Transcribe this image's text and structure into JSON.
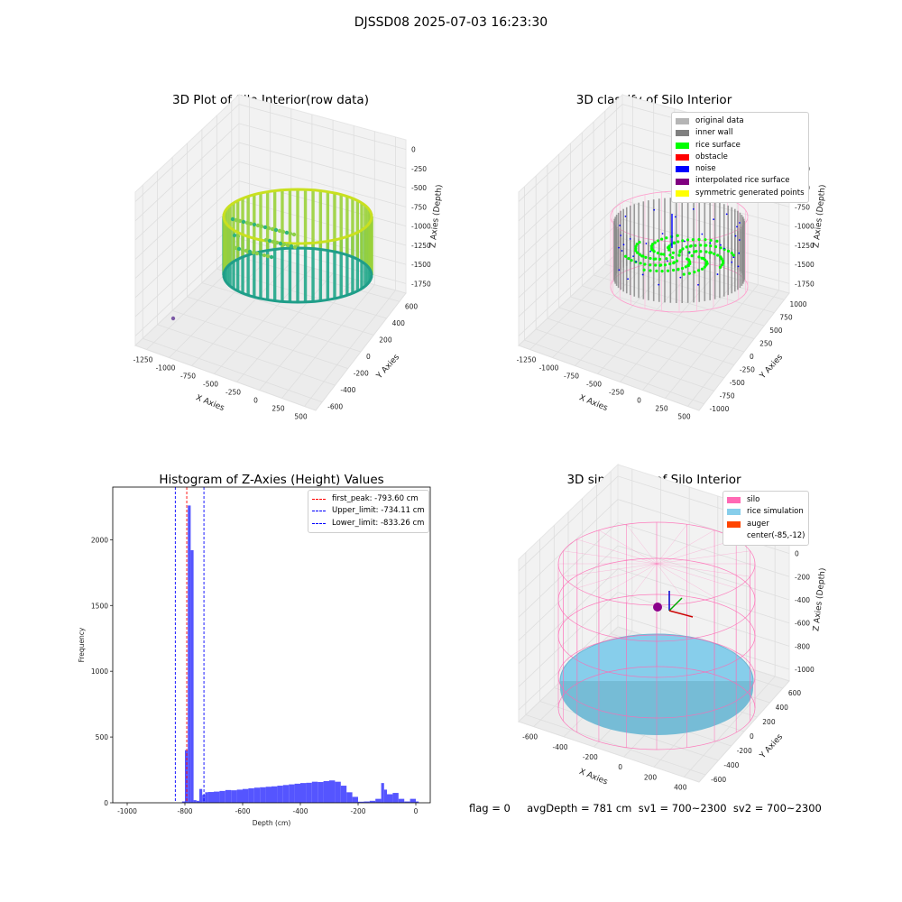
{
  "suptitle": "DJSSD08 2025-07-03 16:23:30",
  "status_line": "flag = 0     avgDepth = 781 cm  sv1 = 700~2300  sv2 = 700~2300",
  "panels": [
    {
      "id": "raw",
      "title": "3D Plot of Silo Interior(row data)",
      "xlabel": "X Axies",
      "ylabel": "Y Axies",
      "zlabel": "Z Axies (Depth)",
      "xticks": [
        "-1250",
        "-1000",
        "-750",
        "-500",
        "-250",
        "0",
        "250",
        "500"
      ],
      "yticks": [
        "-600",
        "-400",
        "-200",
        "0",
        "200",
        "400",
        "600"
      ],
      "zticks": [
        "0",
        "-250",
        "-500",
        "-750",
        "-1000",
        "-1250",
        "-1500",
        "-1750"
      ]
    },
    {
      "id": "classify",
      "title": "3D classify of Silo Interior",
      "xlabel": "X Axies",
      "ylabel": "Y Axies",
      "zlabel": "Z Axies (Depth)",
      "xticks": [
        "-1250",
        "-1000",
        "-750",
        "-500",
        "-250",
        "0",
        "250",
        "500"
      ],
      "yticks": [
        "-1000",
        "-750",
        "-500",
        "-250",
        "0",
        "250",
        "500",
        "750",
        "1000"
      ],
      "zticks": [
        "0",
        "-250",
        "-500",
        "-750",
        "-1000",
        "-1250",
        "-1500",
        "-1750"
      ],
      "legend": [
        {
          "label": "original data",
          "color": "#b5b5b5"
        },
        {
          "label": "inner wall",
          "color": "#808080"
        },
        {
          "label": "rice surface",
          "color": "#00ff00"
        },
        {
          "label": "obstacle",
          "color": "#ff0000"
        },
        {
          "label": "noise",
          "color": "#0000ff"
        },
        {
          "label": "interpolated rice surface",
          "color": "#800080"
        },
        {
          "label": "symmetric generated points",
          "color": "#ffff00"
        }
      ]
    },
    {
      "id": "simulation",
      "title": "3D simulation of Silo Interior",
      "xlabel": "X Axies",
      "ylabel": "Y Axies",
      "zlabel": "Z Axies (Depth)",
      "xticks": [
        "-600",
        "-400",
        "-200",
        "0",
        "200",
        "400"
      ],
      "yticks": [
        "-600",
        "-400",
        "-200",
        "0",
        "200",
        "400",
        "600"
      ],
      "zticks": [
        "200",
        "0",
        "-200",
        "-400",
        "-600",
        "-800",
        "-1000"
      ],
      "legend": [
        {
          "label": "silo",
          "color": "#ff69b4"
        },
        {
          "label": "rice simulation",
          "color": "#87ceeb"
        },
        {
          "label": "auger",
          "color": "#ff4500"
        },
        {
          "label": "center(-85,-12)",
          "color": "#ffffff"
        }
      ]
    }
  ],
  "chart_data": {
    "type": "bar",
    "title": "Histogram of Z-Axies (Height) Values",
    "xlabel": "Depth (cm)",
    "ylabel": "Frequency",
    "xlim": [
      -1050,
      50
    ],
    "ylim": [
      0,
      2400
    ],
    "xticks": [
      -1000,
      -800,
      -600,
      -400,
      -200,
      0
    ],
    "yticks": [
      0,
      500,
      1000,
      1500,
      2000
    ],
    "bar_color": "#4c4cff",
    "bins": [
      [
        -810,
        -800,
        10
      ],
      [
        -800,
        -790,
        400
      ],
      [
        -790,
        -780,
        2260
      ],
      [
        -780,
        -770,
        1920
      ],
      [
        -770,
        -760,
        20
      ],
      [
        -760,
        -750,
        15
      ],
      [
        -750,
        -740,
        105
      ],
      [
        -740,
        -730,
        60
      ],
      [
        -730,
        -720,
        80
      ],
      [
        -720,
        -700,
        82
      ],
      [
        -700,
        -680,
        85
      ],
      [
        -680,
        -660,
        90
      ],
      [
        -660,
        -640,
        97
      ],
      [
        -640,
        -620,
        95
      ],
      [
        -620,
        -600,
        100
      ],
      [
        -600,
        -580,
        105
      ],
      [
        -580,
        -560,
        110
      ],
      [
        -560,
        -540,
        115
      ],
      [
        -540,
        -520,
        118
      ],
      [
        -520,
        -500,
        122
      ],
      [
        -500,
        -480,
        125
      ],
      [
        -480,
        -460,
        130
      ],
      [
        -460,
        -440,
        135
      ],
      [
        -440,
        -420,
        140
      ],
      [
        -420,
        -400,
        145
      ],
      [
        -400,
        -380,
        150
      ],
      [
        -380,
        -360,
        152
      ],
      [
        -360,
        -340,
        160
      ],
      [
        -340,
        -320,
        158
      ],
      [
        -320,
        -300,
        165
      ],
      [
        -300,
        -280,
        170
      ],
      [
        -280,
        -260,
        160
      ],
      [
        -260,
        -240,
        130
      ],
      [
        -240,
        -220,
        80
      ],
      [
        -220,
        -200,
        45
      ],
      [
        -200,
        -180,
        8
      ],
      [
        -180,
        -160,
        10
      ],
      [
        -160,
        -140,
        15
      ],
      [
        -140,
        -120,
        30
      ],
      [
        -120,
        -110,
        150
      ],
      [
        -110,
        -100,
        100
      ],
      [
        -100,
        -80,
        65
      ],
      [
        -80,
        -60,
        75
      ],
      [
        -60,
        -40,
        30
      ],
      [
        -40,
        -20,
        10
      ],
      [
        -20,
        0,
        30
      ],
      [
        0,
        10,
        10
      ]
    ],
    "vlines": [
      {
        "label": "first_peak: -793.60 cm",
        "x": -793.6,
        "color": "#ff0000"
      },
      {
        "label": "Upper_limit: -734.11 cm",
        "x": -734.11,
        "color": "#0000ff"
      },
      {
        "label": "Lower_limit: -833.26 cm",
        "x": -833.26,
        "color": "#0000ff"
      }
    ]
  }
}
